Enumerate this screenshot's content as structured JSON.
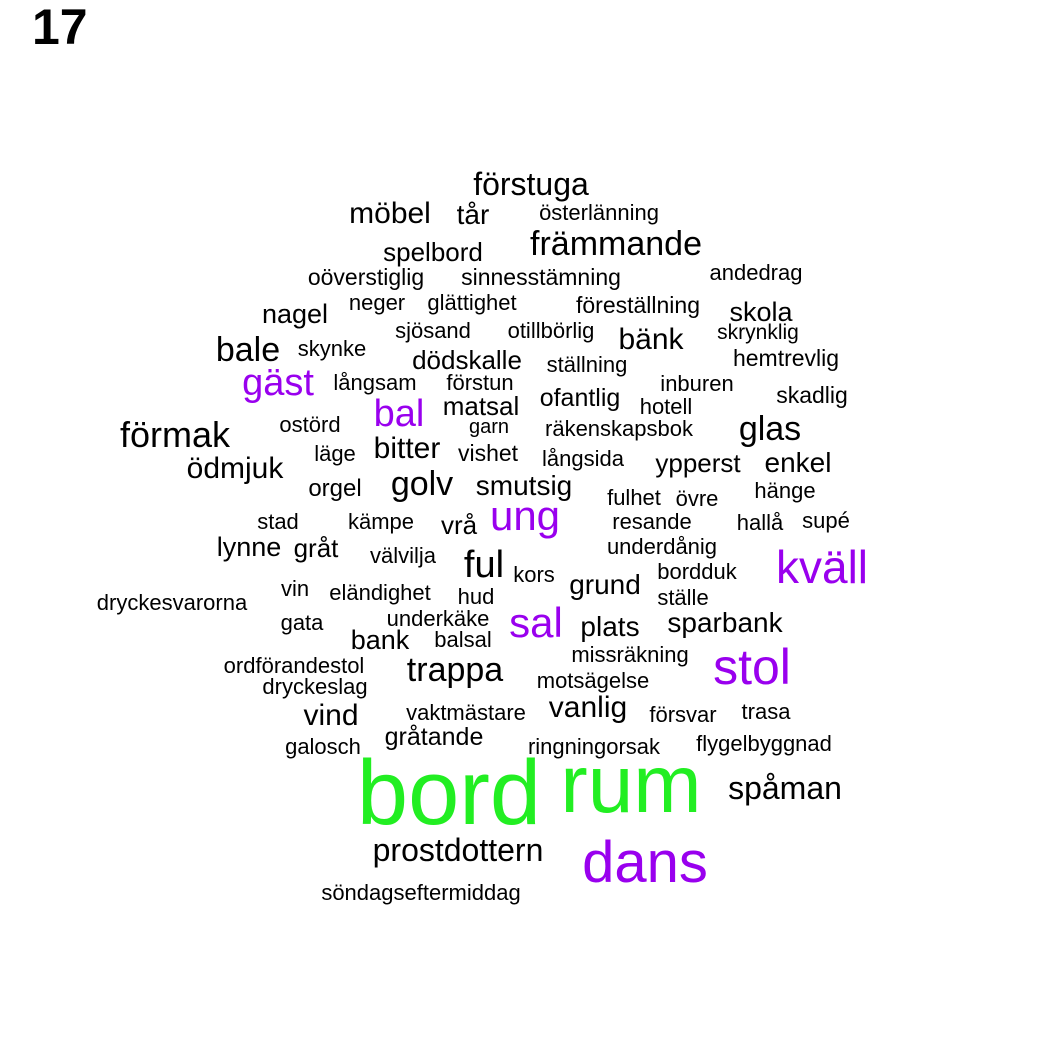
{
  "page_number": "17",
  "colors": {
    "large": "#22ee22",
    "medium": "#9900ee",
    "small": "#000000"
  },
  "words": [
    {
      "text": "förstuga",
      "level": "small"
    },
    {
      "text": "möbel",
      "level": "small"
    },
    {
      "text": "tår",
      "level": "small"
    },
    {
      "text": "österlänning",
      "level": "small"
    },
    {
      "text": "spelbord",
      "level": "small"
    },
    {
      "text": "främmande",
      "level": "small"
    },
    {
      "text": "oöverstiglig",
      "level": "small"
    },
    {
      "text": "sinnesstämning",
      "level": "small"
    },
    {
      "text": "andedrag",
      "level": "small"
    },
    {
      "text": "nagel",
      "level": "small"
    },
    {
      "text": "neger",
      "level": "small"
    },
    {
      "text": "glättighet",
      "level": "small"
    },
    {
      "text": "föreställning",
      "level": "small"
    },
    {
      "text": "skola",
      "level": "small"
    },
    {
      "text": "sjösand",
      "level": "small"
    },
    {
      "text": "otillbörlig",
      "level": "small"
    },
    {
      "text": "skrynklig",
      "level": "small"
    },
    {
      "text": "bänk",
      "level": "small"
    },
    {
      "text": "bale",
      "level": "small"
    },
    {
      "text": "skynke",
      "level": "small"
    },
    {
      "text": "dödskalle",
      "level": "small"
    },
    {
      "text": "ställning",
      "level": "small"
    },
    {
      "text": "hemtrevlig",
      "level": "small"
    },
    {
      "text": "gäst",
      "level": "medium"
    },
    {
      "text": "långsam",
      "level": "small"
    },
    {
      "text": "förstun",
      "level": "small"
    },
    {
      "text": "inburen",
      "level": "small"
    },
    {
      "text": "skadlig",
      "level": "small"
    },
    {
      "text": "bal",
      "level": "medium"
    },
    {
      "text": "matsal",
      "level": "small"
    },
    {
      "text": "ofantlig",
      "level": "small"
    },
    {
      "text": "hotell",
      "level": "small"
    },
    {
      "text": "förmak",
      "level": "small"
    },
    {
      "text": "ostörd",
      "level": "small"
    },
    {
      "text": "garn",
      "level": "small"
    },
    {
      "text": "räkenskapsbok",
      "level": "small"
    },
    {
      "text": "glas",
      "level": "small"
    },
    {
      "text": "läge",
      "level": "small"
    },
    {
      "text": "bitter",
      "level": "small"
    },
    {
      "text": "vishet",
      "level": "small"
    },
    {
      "text": "långsida",
      "level": "small"
    },
    {
      "text": "ypperst",
      "level": "small"
    },
    {
      "text": "enkel",
      "level": "small"
    },
    {
      "text": "ödmjuk",
      "level": "small"
    },
    {
      "text": "orgel",
      "level": "small"
    },
    {
      "text": "golv",
      "level": "small"
    },
    {
      "text": "smutsig",
      "level": "small"
    },
    {
      "text": "fulhet",
      "level": "small"
    },
    {
      "text": "övre",
      "level": "small"
    },
    {
      "text": "hänge",
      "level": "small"
    },
    {
      "text": "stad",
      "level": "small"
    },
    {
      "text": "kämpe",
      "level": "small"
    },
    {
      "text": "vrå",
      "level": "small"
    },
    {
      "text": "ung",
      "level": "medium"
    },
    {
      "text": "resande",
      "level": "small"
    },
    {
      "text": "hallå",
      "level": "small"
    },
    {
      "text": "supé",
      "level": "small"
    },
    {
      "text": "lynne",
      "level": "small"
    },
    {
      "text": "gråt",
      "level": "small"
    },
    {
      "text": "välvilja",
      "level": "small"
    },
    {
      "text": "underdånig",
      "level": "small"
    },
    {
      "text": "ful",
      "level": "small"
    },
    {
      "text": "kors",
      "level": "small"
    },
    {
      "text": "bordduk",
      "level": "small"
    },
    {
      "text": "kväll",
      "level": "medium"
    },
    {
      "text": "vin",
      "level": "small"
    },
    {
      "text": "eländighet",
      "level": "small"
    },
    {
      "text": "grund",
      "level": "small"
    },
    {
      "text": "dryckesvarorna",
      "level": "small"
    },
    {
      "text": "hud",
      "level": "small"
    },
    {
      "text": "ställe",
      "level": "small"
    },
    {
      "text": "gata",
      "level": "small"
    },
    {
      "text": "underkäke",
      "level": "small"
    },
    {
      "text": "sal",
      "level": "medium"
    },
    {
      "text": "plats",
      "level": "small"
    },
    {
      "text": "sparbank",
      "level": "small"
    },
    {
      "text": "bank",
      "level": "small"
    },
    {
      "text": "balsal",
      "level": "small"
    },
    {
      "text": "missräkning",
      "level": "small"
    },
    {
      "text": "ordförandestol",
      "level": "small"
    },
    {
      "text": "trappa",
      "level": "small"
    },
    {
      "text": "stol",
      "level": "medium"
    },
    {
      "text": "dryckeslag",
      "level": "small"
    },
    {
      "text": "motsägelse",
      "level": "small"
    },
    {
      "text": "vind",
      "level": "small"
    },
    {
      "text": "vaktmästare",
      "level": "small"
    },
    {
      "text": "vanlig",
      "level": "small"
    },
    {
      "text": "försvar",
      "level": "small"
    },
    {
      "text": "trasa",
      "level": "small"
    },
    {
      "text": "gråtande",
      "level": "small"
    },
    {
      "text": "galosch",
      "level": "small"
    },
    {
      "text": "ringningorsak",
      "level": "small"
    },
    {
      "text": "flygelbyggnad",
      "level": "small"
    },
    {
      "text": "bord",
      "level": "large"
    },
    {
      "text": "rum",
      "level": "large"
    },
    {
      "text": "spåman",
      "level": "small"
    },
    {
      "text": "prostdottern",
      "level": "small"
    },
    {
      "text": "dans",
      "level": "medium"
    },
    {
      "text": "söndagseftermiddag",
      "level": "small"
    }
  ]
}
